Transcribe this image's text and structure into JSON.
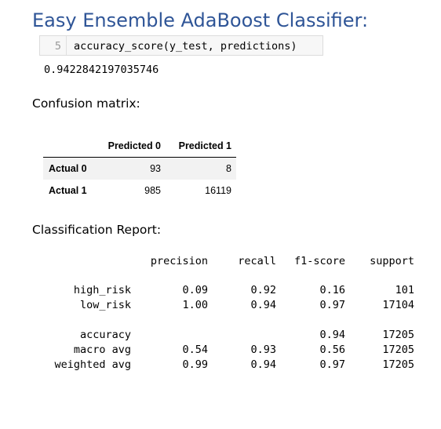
{
  "title": "Easy Ensemble AdaBoost Classifier:",
  "code_cell": {
    "line_number": "5",
    "code": "accuracy_score(y_test, predictions)"
  },
  "accuracy_output": "0.9422842197035746",
  "confusion_matrix": {
    "label": "Confusion matrix:",
    "columns": [
      "Predicted 0",
      "Predicted 1"
    ],
    "rows": [
      {
        "label": "Actual 0",
        "values": [
          "93",
          "8"
        ]
      },
      {
        "label": "Actual 1",
        "values": [
          "985",
          "16119"
        ]
      }
    ]
  },
  "classification_report": {
    "label": "Classification Report:",
    "headers": {
      "precision": "precision",
      "recall": "recall",
      "f1": "f1-score",
      "support": "support"
    },
    "rows": [
      {
        "label": "high_risk",
        "precision": "0.09",
        "recall": "0.92",
        "f1": "0.16",
        "support": "101"
      },
      {
        "label": "low_risk",
        "precision": "1.00",
        "recall": "0.94",
        "f1": "0.97",
        "support": "17104"
      }
    ],
    "summary": [
      {
        "label": "accuracy",
        "precision": "",
        "recall": "",
        "f1": "0.94",
        "support": "17205"
      },
      {
        "label": "macro avg",
        "precision": "0.54",
        "recall": "0.93",
        "f1": "0.56",
        "support": "17205"
      },
      {
        "label": "weighted avg",
        "precision": "0.99",
        "recall": "0.94",
        "f1": "0.97",
        "support": "17205"
      }
    ]
  }
}
